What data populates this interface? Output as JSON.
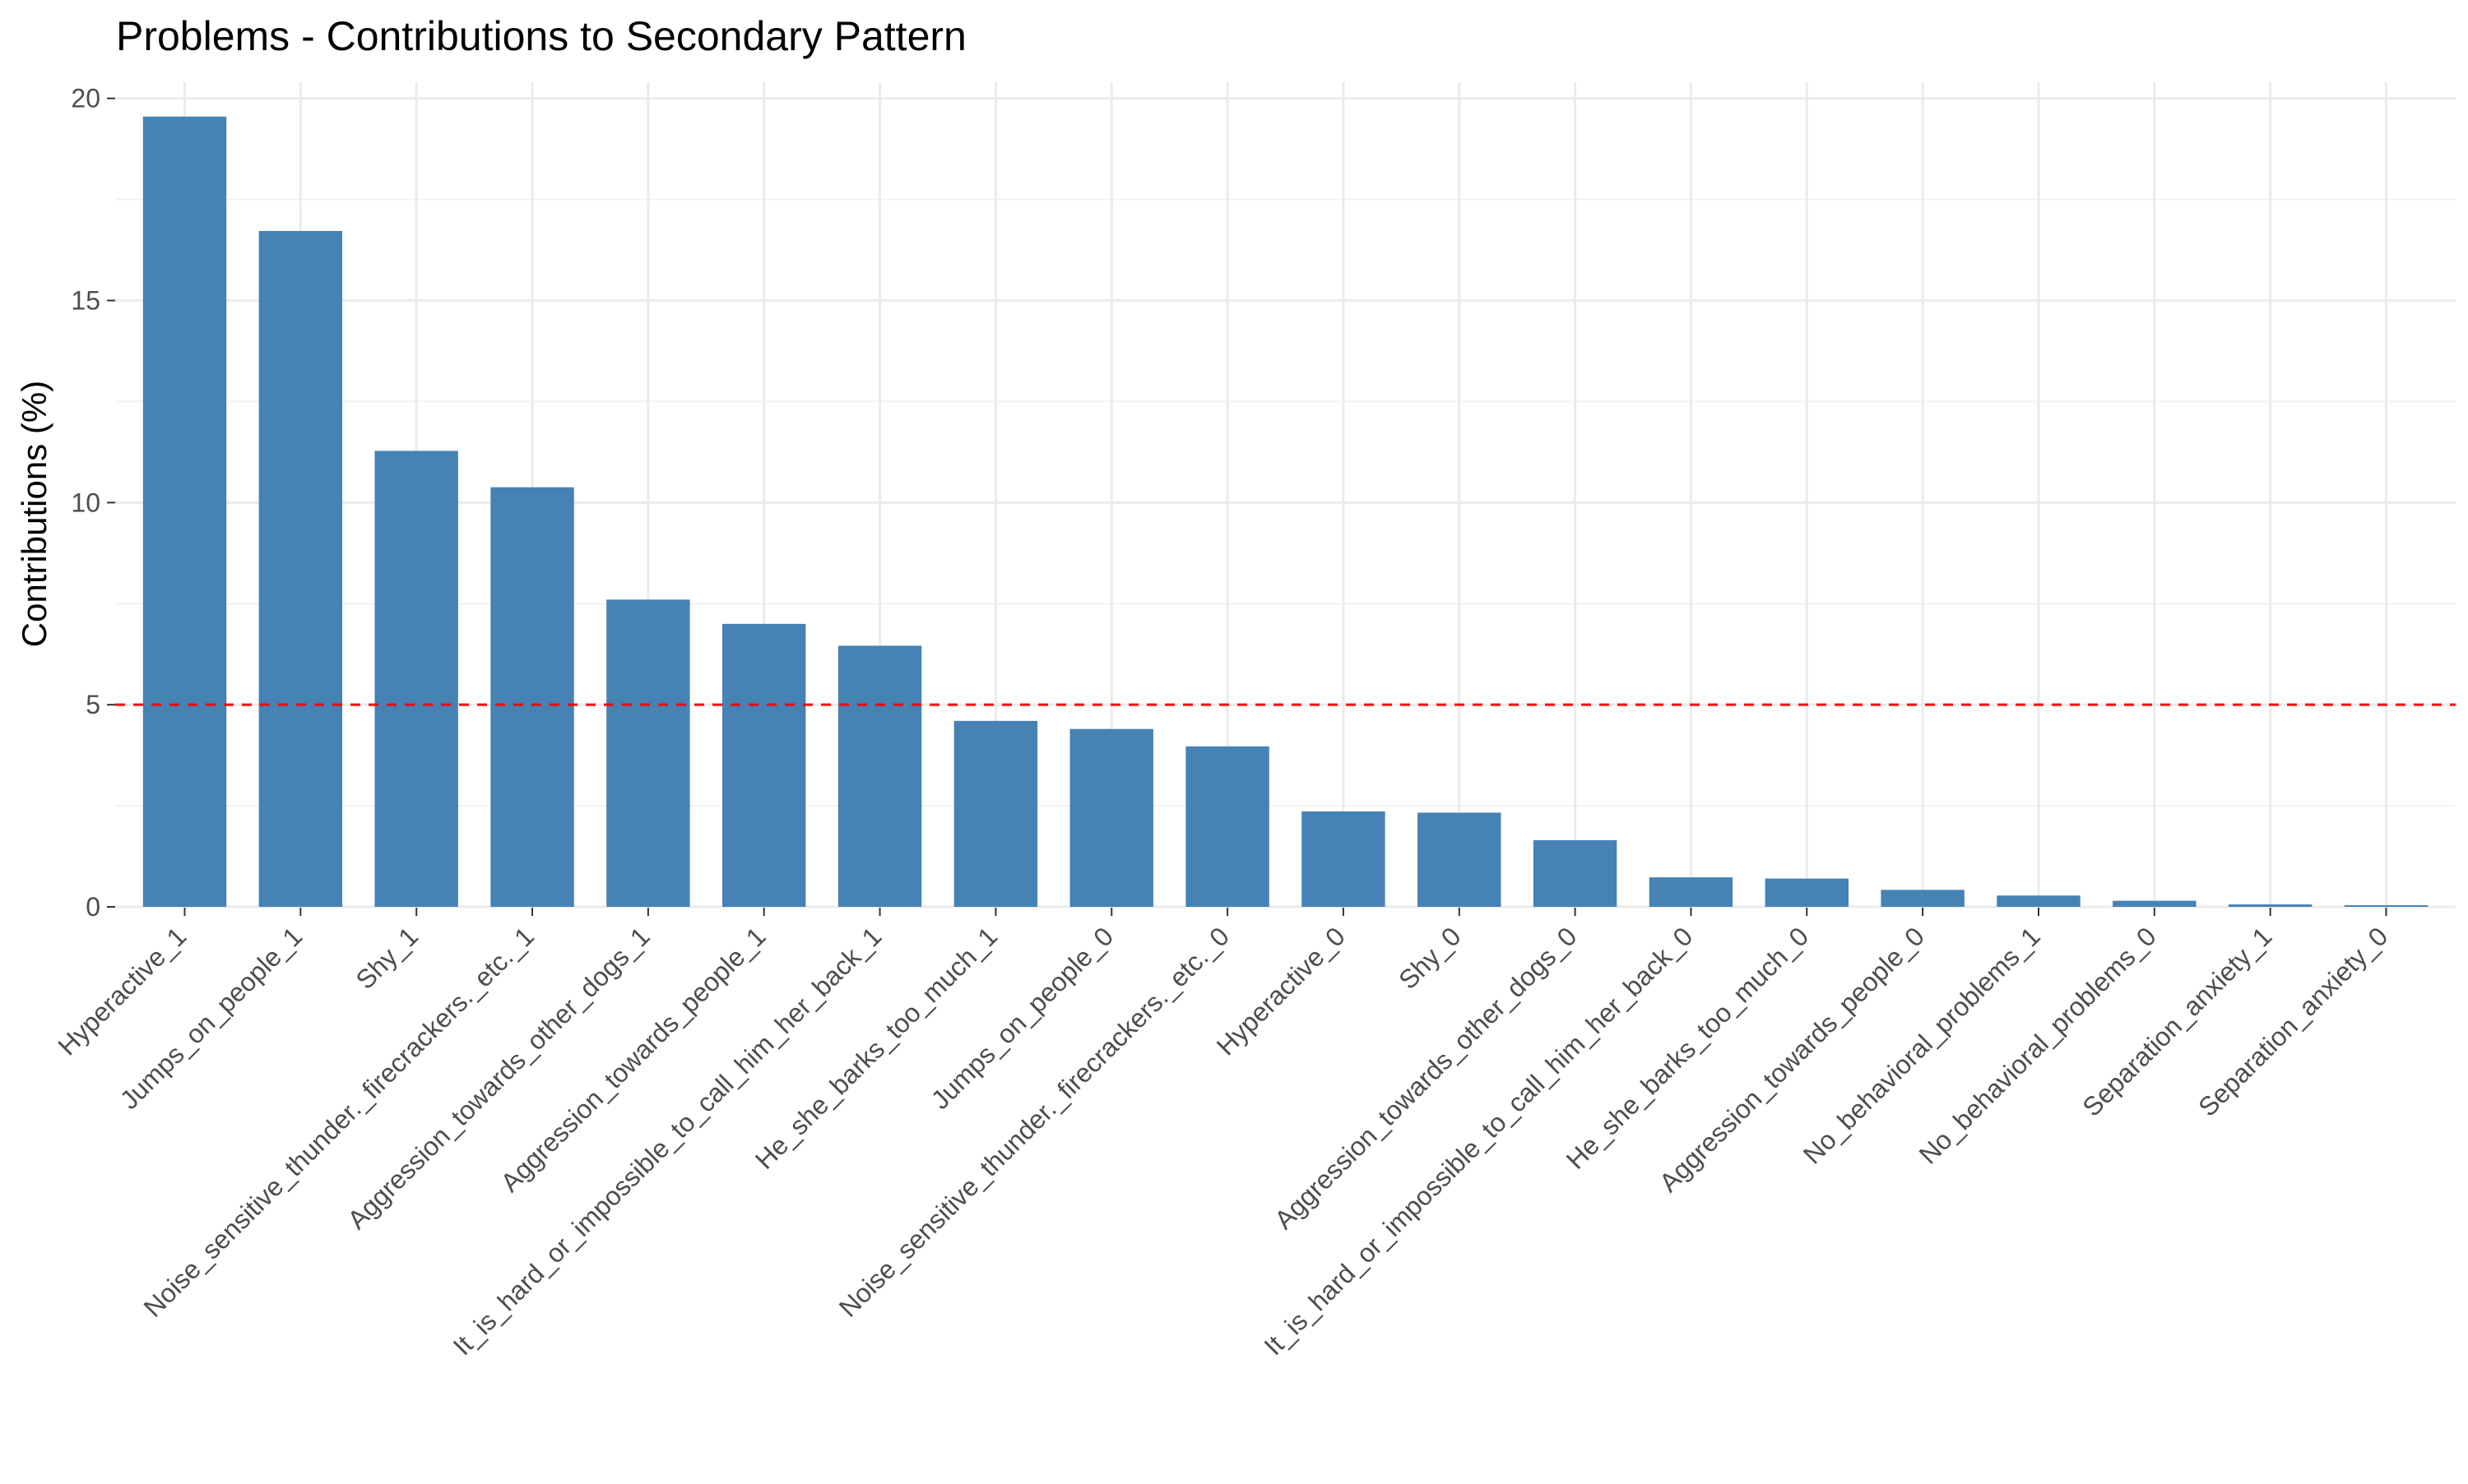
{
  "chart_data": {
    "type": "bar",
    "title": "Problems - Contributions to Secondary Pattern",
    "xlabel": "",
    "ylabel": "Contributions (%)",
    "ylim": [
      0,
      20.4
    ],
    "yticks": [
      0,
      5,
      10,
      15,
      20
    ],
    "grid": true,
    "bar_color": "#4682B4",
    "reference_line": {
      "value": 5,
      "color": "#FF0000",
      "style": "dashed"
    },
    "categories": [
      "Hyperactive_1",
      "Jumps_on_people_1",
      "Shy_1",
      "Noise_sensitive_thunder._firecrackers._etc._1",
      "Aggression_towards_other_dogs_1",
      "Aggression_towards_people_1",
      "It_is_hard_or_impossible_to_call_him_her_back_1",
      "He_she_barks_too_much_1",
      "Jumps_on_people_0",
      "Noise_sensitive_thunder._firecrackers._etc._0",
      "Hyperactive_0",
      "Shy_0",
      "Aggression_towards_other_dogs_0",
      "It_is_hard_or_impossible_to_call_him_her_back_0",
      "He_she_barks_too_much_0",
      "Aggression_towards_people_0",
      "No_behavioral_problems_1",
      "No_behavioral_problems_0",
      "Separation_anxiety_1",
      "Separation_anxiety_0"
    ],
    "values": [
      19.55,
      16.72,
      11.28,
      10.38,
      7.6,
      7.0,
      6.46,
      4.6,
      4.4,
      3.97,
      2.36,
      2.33,
      1.65,
      0.73,
      0.7,
      0.42,
      0.28,
      0.15,
      0.06,
      0.04
    ]
  }
}
